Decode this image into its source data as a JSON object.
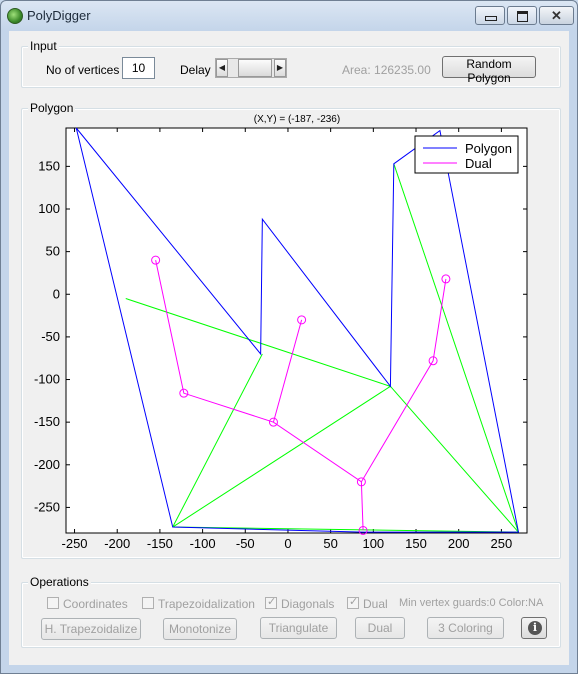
{
  "window": {
    "title": "PolyDigger",
    "close_glyph": "✕"
  },
  "input": {
    "legend": "Input",
    "vertices_label": "No of vertices",
    "vertices_value": "10",
    "delay_label": "Delay",
    "area_text": "Area: 126235.00",
    "random_button": "Random Polygon"
  },
  "polygon_panel": {
    "legend": "Polygon"
  },
  "chart_data": {
    "type": "line",
    "title": "(X,Y) = (-187, -236)",
    "xlim": [
      -260,
      280
    ],
    "ylim": [
      -280,
      195
    ],
    "xticks": [
      -250,
      -200,
      -150,
      -100,
      -50,
      0,
      50,
      100,
      150,
      200,
      250
    ],
    "yticks": [
      150,
      100,
      50,
      0,
      -50,
      -100,
      -150,
      -200,
      -250
    ],
    "legend_position": "top-right",
    "series": [
      {
        "name": "Polygon",
        "color": "#0000ff",
        "style": "line",
        "x": [
          -248,
          -32,
          -30,
          120,
          124,
          178,
          270,
          88,
          -135,
          -248
        ],
        "y": [
          195,
          -70,
          88,
          -108,
          153,
          192,
          -279,
          -279,
          -273,
          195
        ]
      },
      {
        "name": "Dual",
        "color": "#ff00ff",
        "style": "line-circle",
        "x": [
          -155,
          -122,
          -17,
          86,
          170,
          185
        ],
        "y": [
          40,
          -116,
          -150,
          -220,
          -78,
          18
        ],
        "branches": [
          {
            "x": [
              -17,
              16
            ],
            "y": [
              -150,
              -30
            ]
          },
          {
            "x": [
              86,
              88
            ],
            "y": [
              -220,
              -277
            ]
          }
        ]
      }
    ],
    "diagonals": {
      "color": "#00ff00",
      "segments": [
        {
          "x": [
            -190,
            120
          ],
          "y": [
            -5,
            -108
          ]
        },
        {
          "x": [
            -135,
            -30
          ],
          "y": [
            -273,
            -70
          ]
        },
        {
          "x": [
            -135,
            120
          ],
          "y": [
            -273,
            -108
          ]
        },
        {
          "x": [
            -135,
            270
          ],
          "y": [
            -273,
            -279
          ]
        },
        {
          "x": [
            120,
            270
          ],
          "y": [
            -108,
            -279
          ]
        },
        {
          "x": [
            124,
            270
          ],
          "y": [
            153,
            -279
          ]
        }
      ]
    }
  },
  "operations": {
    "legend": "Operations",
    "coordinates": {
      "label": "Coordinates",
      "checked": false
    },
    "trapezoidalization": {
      "label": "Trapezoidalization",
      "checked": false
    },
    "diagonals": {
      "label": "Diagonals",
      "checked": true
    },
    "dual": {
      "label": "Dual",
      "checked": true
    },
    "guards_text": "Min vertex guards:0 Color:NA",
    "buttons": {
      "h_trapezoidalize": "H. Trapezoidalize",
      "monotonize": "Monotonize",
      "triangulate": "Triangulate",
      "dual": "Dual",
      "coloring": "3 Coloring"
    },
    "info_glyph": "i",
    "check_glyph": "✓"
  },
  "icons": [
    "app-icon",
    "minimize-icon",
    "maximize-icon",
    "close-icon",
    "slider-left-arrow-icon",
    "slider-right-arrow-icon",
    "info-icon"
  ]
}
